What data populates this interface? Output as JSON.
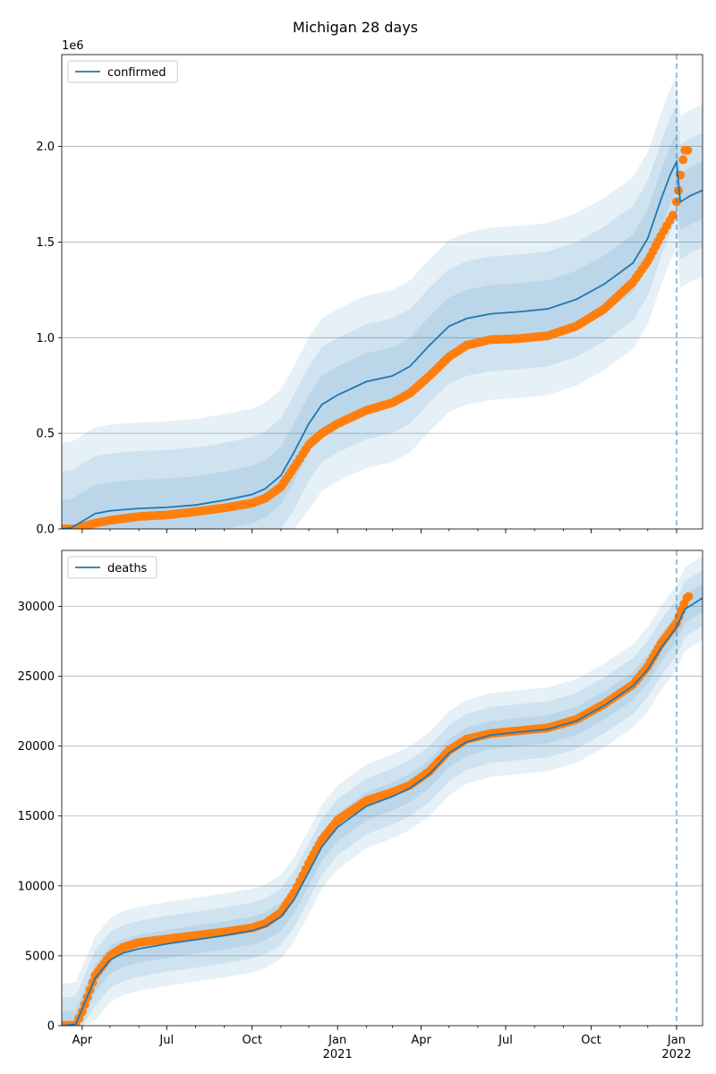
{
  "title": "Michigan 28 days",
  "chart_data": [
    {
      "type": "line",
      "panel": "top",
      "series_name": "confirmed",
      "multiplier_label": "1e6",
      "grid": true,
      "legend_position": "top-left",
      "ylim": [
        0,
        2.48
      ],
      "yticks": [
        0.0,
        0.5,
        1.0,
        1.5,
        2.0
      ],
      "ytick_labels": [
        "0.0",
        "0.5",
        "1.0",
        "1.5",
        "2.0"
      ],
      "forecast_start": "2022-01-01",
      "model_line": [
        [
          "2020-03-10",
          0.0
        ],
        [
          "2020-03-20",
          0.005
        ],
        [
          "2020-04-01",
          0.04
        ],
        [
          "2020-04-15",
          0.08
        ],
        [
          "2020-05-01",
          0.095
        ],
        [
          "2020-06-01",
          0.107
        ],
        [
          "2020-07-01",
          0.113
        ],
        [
          "2020-08-01",
          0.125
        ],
        [
          "2020-09-01",
          0.15
        ],
        [
          "2020-10-01",
          0.18
        ],
        [
          "2020-10-15",
          0.21
        ],
        [
          "2020-11-01",
          0.28
        ],
        [
          "2020-11-15",
          0.4
        ],
        [
          "2020-12-01",
          0.55
        ],
        [
          "2020-12-15",
          0.65
        ],
        [
          "2021-01-01",
          0.7
        ],
        [
          "2021-02-01",
          0.77
        ],
        [
          "2021-03-01",
          0.8
        ],
        [
          "2021-03-20",
          0.85
        ],
        [
          "2021-04-10",
          0.96
        ],
        [
          "2021-05-01",
          1.06
        ],
        [
          "2021-05-20",
          1.1
        ],
        [
          "2021-06-15",
          1.125
        ],
        [
          "2021-07-15",
          1.135
        ],
        [
          "2021-08-15",
          1.15
        ],
        [
          "2021-09-15",
          1.2
        ],
        [
          "2021-10-15",
          1.28
        ],
        [
          "2021-11-15",
          1.39
        ],
        [
          "2021-12-01",
          1.52
        ],
        [
          "2021-12-15",
          1.72
        ],
        [
          "2021-12-25",
          1.85
        ],
        [
          "2022-01-01",
          1.92
        ],
        [
          "2022-01-05",
          1.71
        ],
        [
          "2022-01-15",
          1.74
        ],
        [
          "2022-01-29",
          1.77
        ]
      ],
      "band_halfwidths": [
        0.15,
        0.3,
        0.45
      ],
      "observed": [
        [
          "2020-03-10",
          0.0
        ],
        [
          "2020-03-25",
          0.0
        ],
        [
          "2020-04-01",
          0.012
        ],
        [
          "2020-04-15",
          0.03
        ],
        [
          "2020-05-01",
          0.045
        ],
        [
          "2020-06-01",
          0.065
        ],
        [
          "2020-07-01",
          0.073
        ],
        [
          "2020-08-01",
          0.09
        ],
        [
          "2020-09-01",
          0.11
        ],
        [
          "2020-10-01",
          0.135
        ],
        [
          "2020-10-15",
          0.16
        ],
        [
          "2020-11-01",
          0.22
        ],
        [
          "2020-11-15",
          0.32
        ],
        [
          "2020-12-01",
          0.44
        ],
        [
          "2020-12-15",
          0.5
        ],
        [
          "2021-01-01",
          0.55
        ],
        [
          "2021-02-01",
          0.62
        ],
        [
          "2021-03-01",
          0.66
        ],
        [
          "2021-03-20",
          0.71
        ],
        [
          "2021-04-10",
          0.8
        ],
        [
          "2021-05-01",
          0.9
        ],
        [
          "2021-05-20",
          0.96
        ],
        [
          "2021-06-15",
          0.99
        ],
        [
          "2021-07-15",
          0.995
        ],
        [
          "2021-08-15",
          1.01
        ],
        [
          "2021-09-15",
          1.06
        ],
        [
          "2021-10-15",
          1.15
        ],
        [
          "2021-11-15",
          1.29
        ],
        [
          "2021-12-01",
          1.4
        ],
        [
          "2021-12-15",
          1.53
        ],
        [
          "2021-12-28",
          1.64
        ],
        [
          "2022-01-01",
          1.71
        ],
        [
          "2022-01-03",
          1.77
        ],
        [
          "2022-01-05",
          1.85
        ],
        [
          "2022-01-08",
          1.93
        ],
        [
          "2022-01-10",
          1.98
        ],
        [
          "2022-01-13",
          1.98
        ]
      ]
    },
    {
      "type": "line",
      "panel": "bottom",
      "series_name": "deaths",
      "grid": true,
      "legend_position": "top-left",
      "ylim": [
        0,
        34000
      ],
      "yticks": [
        0,
        5000,
        10000,
        15000,
        20000,
        25000,
        30000
      ],
      "ytick_labels": [
        "0",
        "5000",
        "10000",
        "15000",
        "20000",
        "25000",
        "30000"
      ],
      "forecast_start": "2022-01-01",
      "model_line": [
        [
          "2020-03-10",
          0
        ],
        [
          "2020-03-25",
          100
        ],
        [
          "2020-04-01",
          1200
        ],
        [
          "2020-04-15",
          3400
        ],
        [
          "2020-05-01",
          4700
        ],
        [
          "2020-05-15",
          5200
        ],
        [
          "2020-06-01",
          5500
        ],
        [
          "2020-07-01",
          5850
        ],
        [
          "2020-08-01",
          6150
        ],
        [
          "2020-09-01",
          6450
        ],
        [
          "2020-10-01",
          6800
        ],
        [
          "2020-10-15",
          7100
        ],
        [
          "2020-11-01",
          7800
        ],
        [
          "2020-11-15",
          9000
        ],
        [
          "2020-12-01",
          11000
        ],
        [
          "2020-12-15",
          12800
        ],
        [
          "2021-01-01",
          14200
        ],
        [
          "2021-02-01",
          15700
        ],
        [
          "2021-03-01",
          16400
        ],
        [
          "2021-03-20",
          17000
        ],
        [
          "2021-04-10",
          18000
        ],
        [
          "2021-05-01",
          19500
        ],
        [
          "2021-05-20",
          20300
        ],
        [
          "2021-06-15",
          20800
        ],
        [
          "2021-07-15",
          21000
        ],
        [
          "2021-08-15",
          21200
        ],
        [
          "2021-09-15",
          21800
        ],
        [
          "2021-10-15",
          22900
        ],
        [
          "2021-11-15",
          24300
        ],
        [
          "2021-12-01",
          25500
        ],
        [
          "2021-12-15",
          27000
        ],
        [
          "2022-01-01",
          28500
        ],
        [
          "2022-01-10",
          29800
        ],
        [
          "2022-01-29",
          30600
        ]
      ],
      "band_halfwidths": [
        1000,
        2000,
        3000
      ],
      "observed": [
        [
          "2020-03-10",
          0
        ],
        [
          "2020-03-25",
          50
        ],
        [
          "2020-04-01",
          1000
        ],
        [
          "2020-04-15",
          3600
        ],
        [
          "2020-05-01",
          5000
        ],
        [
          "2020-05-15",
          5600
        ],
        [
          "2020-06-01",
          5950
        ],
        [
          "2020-07-01",
          6200
        ],
        [
          "2020-08-01",
          6450
        ],
        [
          "2020-09-01",
          6700
        ],
        [
          "2020-10-01",
          7000
        ],
        [
          "2020-10-15",
          7300
        ],
        [
          "2020-11-01",
          8100
        ],
        [
          "2020-11-15",
          9500
        ],
        [
          "2020-12-01",
          11600
        ],
        [
          "2020-12-15",
          13300
        ],
        [
          "2021-01-01",
          14700
        ],
        [
          "2021-02-01",
          16100
        ],
        [
          "2021-03-01",
          16700
        ],
        [
          "2021-03-20",
          17200
        ],
        [
          "2021-04-10",
          18200
        ],
        [
          "2021-05-01",
          19700
        ],
        [
          "2021-05-20",
          20500
        ],
        [
          "2021-06-15",
          20900
        ],
        [
          "2021-07-15",
          21100
        ],
        [
          "2021-08-15",
          21300
        ],
        [
          "2021-09-15",
          21900
        ],
        [
          "2021-10-15",
          23000
        ],
        [
          "2021-11-15",
          24400
        ],
        [
          "2021-12-01",
          25700
        ],
        [
          "2021-12-15",
          27300
        ],
        [
          "2022-01-01",
          28800
        ],
        [
          "2022-01-06",
          29700
        ],
        [
          "2022-01-12",
          30600
        ],
        [
          "2022-01-14",
          30700
        ]
      ]
    }
  ],
  "xaxis": {
    "range": [
      "2020-03-10",
      "2022-01-29"
    ],
    "ticks": [
      {
        "date": "2020-04-01",
        "label": "Apr",
        "sub": ""
      },
      {
        "date": "2020-07-01",
        "label": "Jul",
        "sub": ""
      },
      {
        "date": "2020-10-01",
        "label": "Oct",
        "sub": ""
      },
      {
        "date": "2021-01-01",
        "label": "Jan",
        "sub": "2021"
      },
      {
        "date": "2021-04-01",
        "label": "Apr",
        "sub": ""
      },
      {
        "date": "2021-07-01",
        "label": "Jul",
        "sub": ""
      },
      {
        "date": "2021-10-01",
        "label": "Oct",
        "sub": ""
      },
      {
        "date": "2022-01-01",
        "label": "Jan",
        "sub": "2022"
      }
    ]
  },
  "colors": {
    "model": "#1f77b4",
    "observed": "#ff7f0e",
    "band": "#1f77b4",
    "forecast_line": "#1f77b4"
  }
}
